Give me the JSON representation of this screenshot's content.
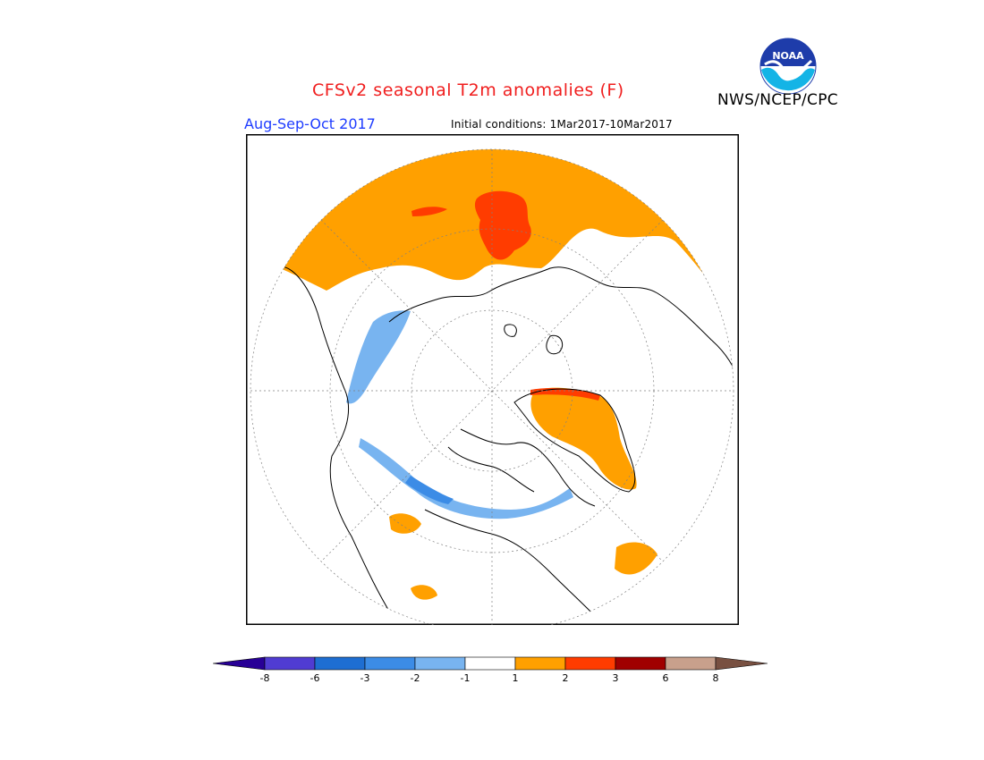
{
  "header": {
    "title": "CFSv2 seasonal T2m anomalies (F)",
    "agency": "NWS/NCEP/CPC",
    "period": "Aug-Sep-Oct 2017",
    "initial_conditions": "Initial conditions: 1Mar2017-10Mar2017",
    "logo_text": "NOAA"
  },
  "colors": {
    "title": "#f01e1e",
    "period": "#1e3cff",
    "warm_1_2": "#ffa000",
    "warm_2_3": "#ff3c00",
    "cold_-2_-1": "#78b4f0",
    "cold_-3_-2": "#3c8ce6"
  },
  "legend": {
    "bins": [
      {
        "color": "#280096",
        "label": "-8",
        "shape": "left-arrow"
      },
      {
        "color": "#503cd2",
        "label": "-6"
      },
      {
        "color": "#1e6ed2",
        "label": "-3"
      },
      {
        "color": "#3c8ce6",
        "label": "-2"
      },
      {
        "color": "#78b4f0",
        "label": "-1"
      },
      {
        "color": "#ffffff",
        "label": "1"
      },
      {
        "color": "#ffa000",
        "label": "2"
      },
      {
        "color": "#ff3c00",
        "label": "3"
      },
      {
        "color": "#a00000",
        "label": "6"
      },
      {
        "color": "#c8a08c",
        "label": "8"
      },
      {
        "color": "#785041",
        "label": "",
        "shape": "right-arrow"
      }
    ]
  }
}
